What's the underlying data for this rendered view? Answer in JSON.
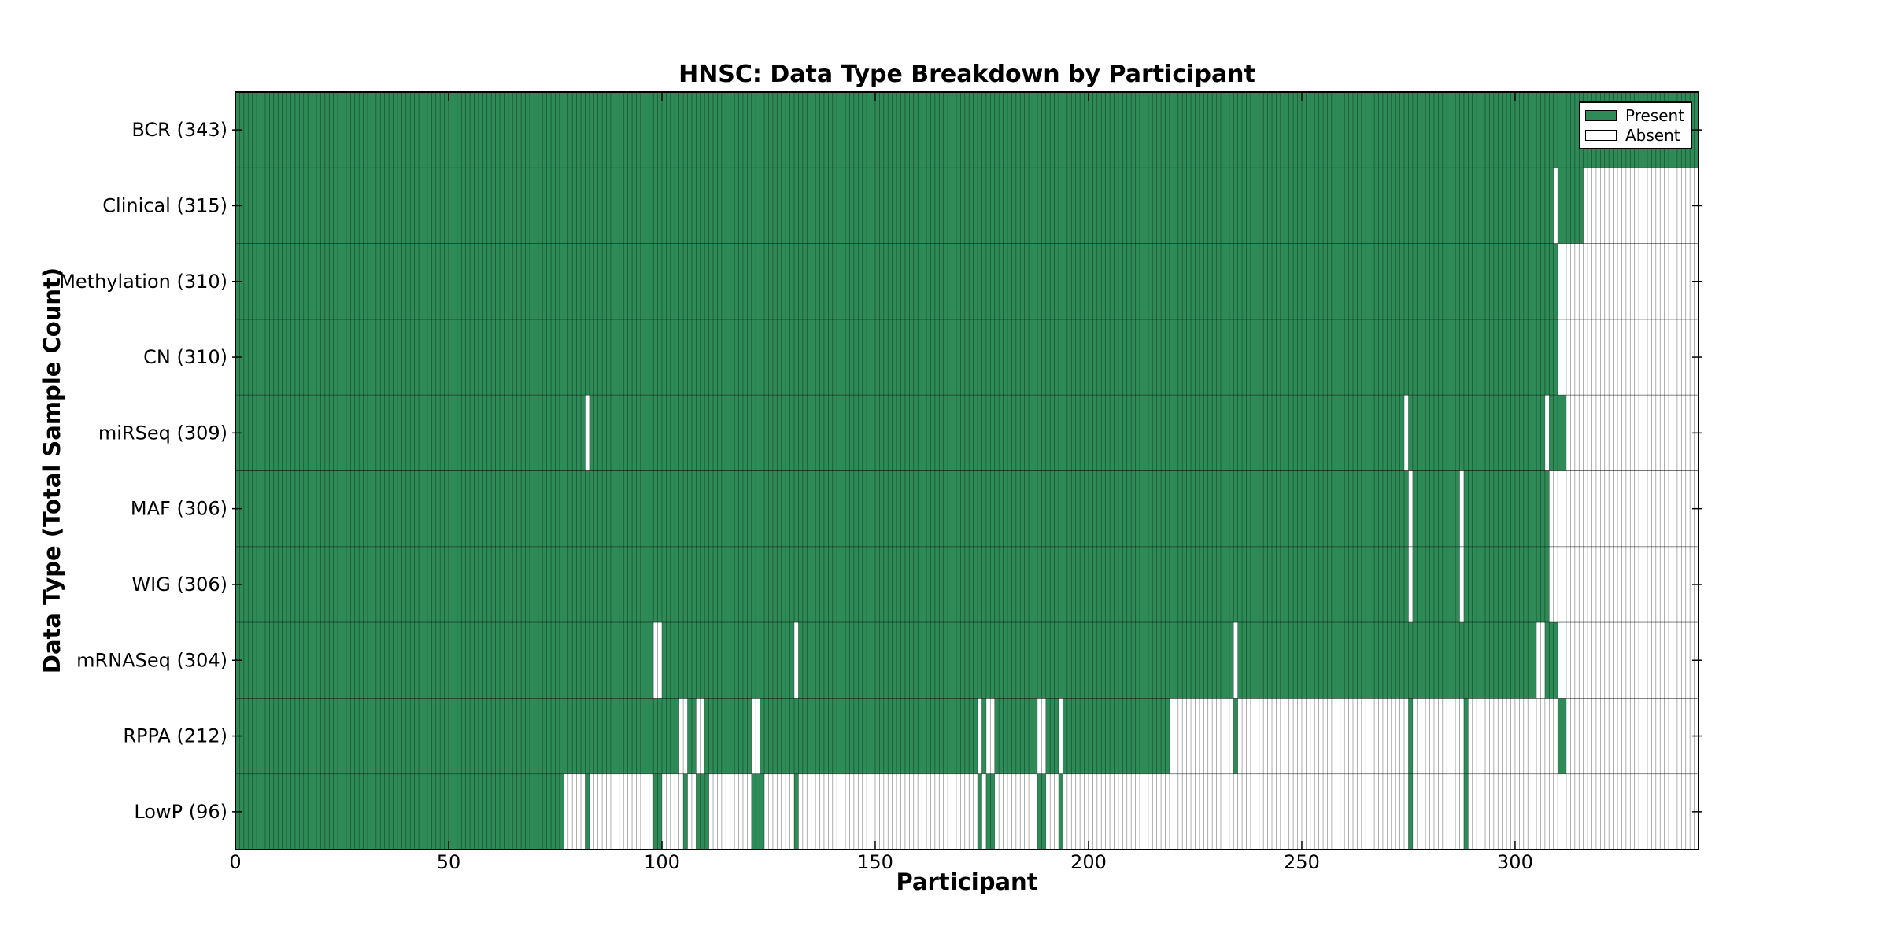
{
  "title": "HNSC: Data Type Breakdown by Participant",
  "axes": {
    "x_label": "Participant",
    "y_label": "Data Type (Total Sample Count)"
  },
  "legend": {
    "present_label": "Present",
    "absent_label": "Absent"
  },
  "colors": {
    "present": "#2E8B57",
    "absent": "#FFFFFF",
    "edge": "#000000",
    "background": "#FFFFFF"
  },
  "chart_data": {
    "type": "heatmap",
    "title": "HNSC: Data Type Breakdown by Participant",
    "xlabel": "Participant",
    "ylabel": "Data Type (Total Sample Count)",
    "x_range": [
      0,
      343
    ],
    "x_ticks": [
      0,
      50,
      100,
      150,
      200,
      250,
      300
    ],
    "n_participants": 343,
    "grid": false,
    "legend_position": "upper right",
    "legend_entries": [
      {
        "label": "Present",
        "color": "#2E8B57"
      },
      {
        "label": "Absent",
        "color": "#FFFFFF"
      }
    ],
    "cohort": "HNSC",
    "rows": [
      {
        "label": "BCR (343)",
        "data_type": "BCR",
        "total_samples": 343,
        "present_ranges": [
          [
            0,
            343
          ]
        ]
      },
      {
        "label": "Clinical (315)",
        "data_type": "Clinical",
        "total_samples": 315,
        "present_ranges": [
          [
            0,
            309
          ],
          [
            310,
            316
          ]
        ]
      },
      {
        "label": "Methylation (310)",
        "data_type": "Methylation",
        "total_samples": 310,
        "present_ranges": [
          [
            0,
            310
          ]
        ]
      },
      {
        "label": "CN (310)",
        "data_type": "CN",
        "total_samples": 310,
        "present_ranges": [
          [
            0,
            310
          ]
        ]
      },
      {
        "label": "miRSeq (309)",
        "data_type": "miRSeq",
        "total_samples": 309,
        "present_ranges": [
          [
            0,
            82
          ],
          [
            83,
            274
          ],
          [
            275,
            307
          ],
          [
            308,
            312
          ]
        ]
      },
      {
        "label": "MAF (306)",
        "data_type": "MAF",
        "total_samples": 306,
        "present_ranges": [
          [
            0,
            275
          ],
          [
            276,
            287
          ],
          [
            288,
            308
          ]
        ]
      },
      {
        "label": "WIG (306)",
        "data_type": "WIG",
        "total_samples": 306,
        "present_ranges": [
          [
            0,
            275
          ],
          [
            276,
            287
          ],
          [
            288,
            308
          ]
        ]
      },
      {
        "label": "mRNASeq (304)",
        "data_type": "mRNASeq",
        "total_samples": 304,
        "present_ranges": [
          [
            0,
            98
          ],
          [
            100,
            131
          ],
          [
            132,
            234
          ],
          [
            235,
            305
          ],
          [
            307,
            310
          ]
        ]
      },
      {
        "label": "RPPA (212)",
        "data_type": "RPPA",
        "total_samples": 212,
        "present_ranges": [
          [
            0,
            104
          ],
          [
            106,
            108
          ],
          [
            110,
            121
          ],
          [
            123,
            174
          ],
          [
            175,
            176
          ],
          [
            178,
            188
          ],
          [
            190,
            193
          ],
          [
            194,
            219
          ],
          [
            234,
            235
          ],
          [
            275,
            276
          ],
          [
            288,
            289
          ],
          [
            310,
            312
          ]
        ]
      },
      {
        "label": "LowP (96)",
        "data_type": "LowP",
        "total_samples": 96,
        "present_ranges": [
          [
            0,
            77
          ],
          [
            82,
            83
          ],
          [
            98,
            100
          ],
          [
            105,
            106
          ],
          [
            108,
            111
          ],
          [
            121,
            124
          ],
          [
            131,
            132
          ],
          [
            174,
            175
          ],
          [
            176,
            178
          ],
          [
            188,
            190
          ],
          [
            193,
            194
          ],
          [
            275,
            276
          ],
          [
            288,
            289
          ]
        ]
      }
    ]
  }
}
